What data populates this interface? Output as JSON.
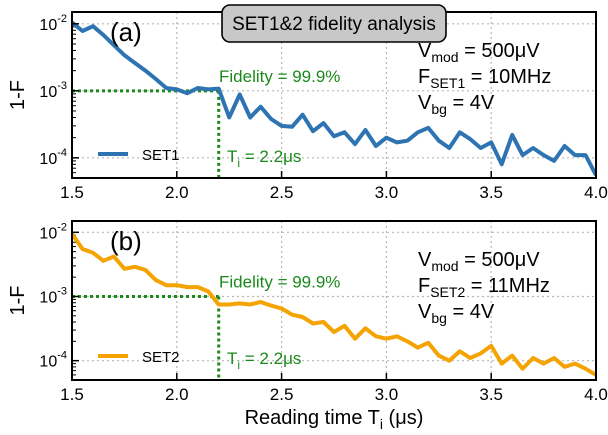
{
  "figure_title": "SET1&2 fidelity analysis",
  "x_axis_label": {
    "main": "Reading time T",
    "sub": "i",
    "unit": " (μs)"
  },
  "colors": {
    "set1": "#2e74b3",
    "set2": "#f5a300",
    "annotation": "#1b8a1b",
    "grid": "#b8b8b8",
    "title_box": "#c8c8c8"
  },
  "chart_data": [
    {
      "type": "line",
      "panel_label": "(a)",
      "ylabel": "1-F",
      "yscale": "log",
      "ylim": [
        5e-05,
        0.015
      ],
      "xlim": [
        1.5,
        4.0
      ],
      "yticks": [
        0.0001,
        0.001,
        0.01
      ],
      "ytick_labels": [
        {
          "base": "10",
          "exp": "-4"
        },
        {
          "base": "10",
          "exp": "-3"
        },
        {
          "base": "10",
          "exp": "-2"
        }
      ],
      "xticks": [
        1.5,
        2.0,
        2.5,
        3.0,
        3.5,
        4.0
      ],
      "xtick_labels": [
        "1.5",
        "2.0",
        "2.5",
        "3.0",
        "3.5",
        "4.0"
      ],
      "grid": true,
      "legend_position": "bottom-left",
      "params": [
        {
          "main": "V",
          "sub": "mod",
          "value": " = 500μV"
        },
        {
          "main": "F",
          "sub": "SET1",
          "value": " = 10MHz"
        },
        {
          "main": "V",
          "sub": "bg",
          "value": " = 4V"
        }
      ],
      "fidelity_label": "Fidelity = 99.9%",
      "time_label": {
        "main": "T",
        "sub": "i",
        "value": " = 2.2μs"
      },
      "threshold": {
        "x": 2.2,
        "y": 0.001
      },
      "series": [
        {
          "name": "SET1",
          "x": [
            1.5,
            1.55,
            1.6,
            1.65,
            1.7,
            1.75,
            1.8,
            1.85,
            1.9,
            1.95,
            2.0,
            2.05,
            2.1,
            2.15,
            2.2,
            2.25,
            2.3,
            2.35,
            2.4,
            2.45,
            2.5,
            2.55,
            2.6,
            2.65,
            2.7,
            2.75,
            2.8,
            2.85,
            2.9,
            2.95,
            3.0,
            3.05,
            3.1,
            3.15,
            3.2,
            3.25,
            3.3,
            3.35,
            3.4,
            3.45,
            3.5,
            3.55,
            3.6,
            3.65,
            3.7,
            3.75,
            3.8,
            3.85,
            3.9,
            3.95,
            4.0
          ],
          "y": [
            0.0105,
            0.0078,
            0.0092,
            0.0068,
            0.0048,
            0.0034,
            0.0026,
            0.002,
            0.0015,
            0.0011,
            0.00105,
            0.00092,
            0.0011,
            0.00105,
            0.00108,
            0.0004,
            0.00088,
            0.0004,
            0.00058,
            0.00038,
            0.0003,
            0.00029,
            0.00044,
            0.00025,
            0.00033,
            0.00021,
            0.00024,
            0.00016,
            0.00026,
            0.00015,
            0.0002,
            0.00017,
            0.00018,
            0.00024,
            0.00028,
            0.00018,
            0.00014,
            0.00024,
            0.00019,
            0.00014,
            0.00017,
            8e-05,
            0.00022,
            0.00011,
            0.00014,
            0.00011,
            9e-05,
            0.00015,
            0.00011,
            0.00011,
            5.5e-05
          ]
        }
      ]
    },
    {
      "type": "line",
      "panel_label": "(b)",
      "ylabel": "1-F",
      "yscale": "log",
      "ylim": [
        5e-05,
        0.015
      ],
      "xlim": [
        1.5,
        4.0
      ],
      "yticks": [
        0.0001,
        0.001,
        0.01
      ],
      "ytick_labels": [
        {
          "base": "10",
          "exp": "-4"
        },
        {
          "base": "10",
          "exp": "-3"
        },
        {
          "base": "10",
          "exp": "-2"
        }
      ],
      "xticks": [
        1.5,
        2.0,
        2.5,
        3.0,
        3.5,
        4.0
      ],
      "xtick_labels": [
        "1.5",
        "2.0",
        "2.5",
        "3.0",
        "3.5",
        "4.0"
      ],
      "grid": true,
      "legend_position": "bottom-left",
      "params": [
        {
          "main": "V",
          "sub": "mod",
          "value": " = 500μV"
        },
        {
          "main": "F",
          "sub": "SET2",
          "value": " = 11MHz"
        },
        {
          "main": "V",
          "sub": "bg",
          "value": " = 4V"
        }
      ],
      "fidelity_label": "Fidelity = 99.9%",
      "time_label": {
        "main": "T",
        "sub": "i",
        "value": " = 2.2μs"
      },
      "threshold": {
        "x": 2.2,
        "y": 0.001
      },
      "series": [
        {
          "name": "SET2",
          "x": [
            1.5,
            1.55,
            1.6,
            1.65,
            1.7,
            1.75,
            1.8,
            1.85,
            1.9,
            1.95,
            2.0,
            2.05,
            2.1,
            2.15,
            2.2,
            2.25,
            2.3,
            2.35,
            2.4,
            2.45,
            2.5,
            2.55,
            2.6,
            2.65,
            2.7,
            2.75,
            2.8,
            2.85,
            2.9,
            2.95,
            3.0,
            3.05,
            3.1,
            3.15,
            3.2,
            3.25,
            3.3,
            3.35,
            3.4,
            3.45,
            3.5,
            3.55,
            3.6,
            3.65,
            3.7,
            3.75,
            3.8,
            3.85,
            3.9,
            3.95,
            4.0
          ],
          "y": [
            0.0095,
            0.0055,
            0.0048,
            0.0036,
            0.0042,
            0.0027,
            0.0029,
            0.0026,
            0.0018,
            0.0015,
            0.0015,
            0.0014,
            0.0014,
            0.0012,
            0.00075,
            0.00075,
            0.00078,
            0.00075,
            0.00082,
            0.00072,
            0.00065,
            0.00052,
            0.00048,
            0.00038,
            0.0004,
            0.00028,
            0.00035,
            0.00022,
            0.00032,
            0.00024,
            0.00022,
            0.00024,
            0.0002,
            0.00016,
            0.00019,
            0.00012,
            0.0001,
            0.00014,
            0.00011,
            0.00013,
            0.00017,
            9e-05,
            0.00012,
            7.5e-05,
            0.00011,
            9e-05,
            0.00011,
            8e-05,
            9e-05,
            7.5e-05,
            6e-05
          ]
        }
      ]
    }
  ]
}
